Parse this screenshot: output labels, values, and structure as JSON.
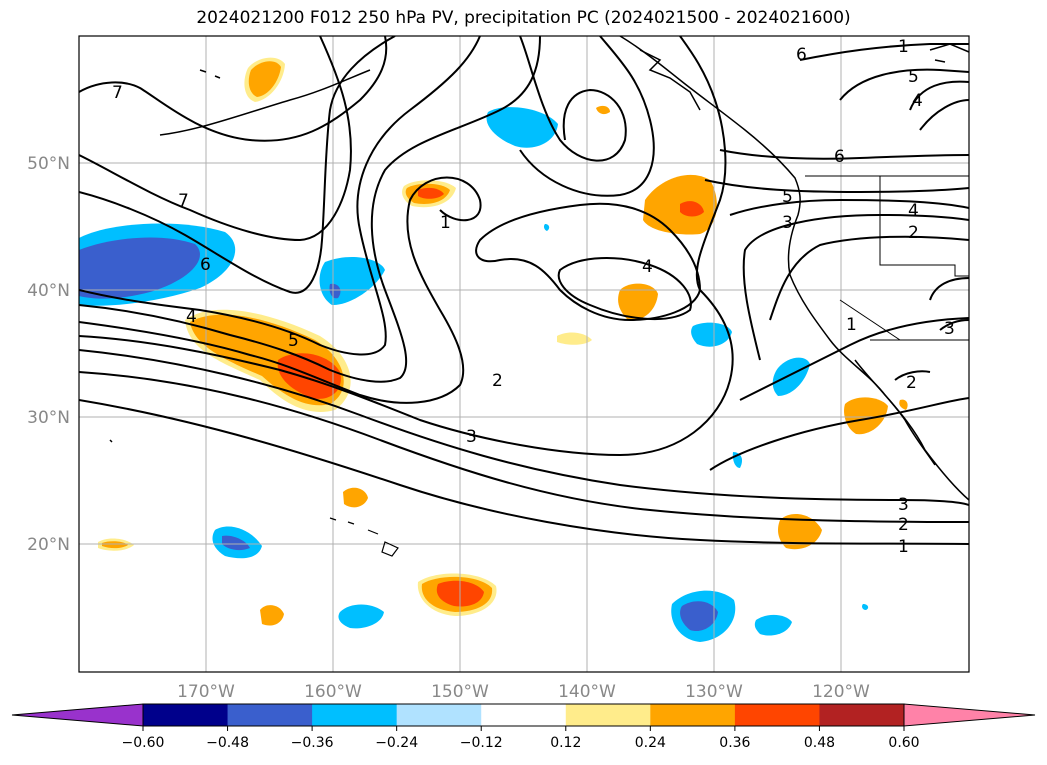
{
  "title": "2024021200 F012 250 hPa PV, precipitation PC (2024021500 - 2024021600)",
  "latitude_labels": [
    "50°N",
    "40°N",
    "30°N",
    "20°N"
  ],
  "longitude_labels": [
    "170°W",
    "160°W",
    "150°W",
    "140°W",
    "130°W",
    "120°W"
  ],
  "colorbar": {
    "tick_labels": [
      "−0.60",
      "−0.48",
      "−0.36",
      "−0.24",
      "−0.12",
      "0.12",
      "0.24",
      "0.36",
      "0.48",
      "0.60"
    ],
    "under_color": "#9932cc",
    "over_color": "#ff82a8",
    "bin_colors": [
      "#00008b",
      "#3a5fcd",
      "#00bfff",
      "#b0e2ff",
      "#ffffff",
      "#ffec8b",
      "#ffa500",
      "#ff4500",
      "#b22222"
    ]
  },
  "contour_labels": [
    "7",
    "7",
    "6",
    "5",
    "4",
    "3",
    "2",
    "1",
    "4",
    "2",
    "3",
    "1",
    "6",
    "6",
    "5",
    "4",
    "4",
    "2",
    "3",
    "5",
    "1",
    "3",
    "2",
    "1"
  ]
}
